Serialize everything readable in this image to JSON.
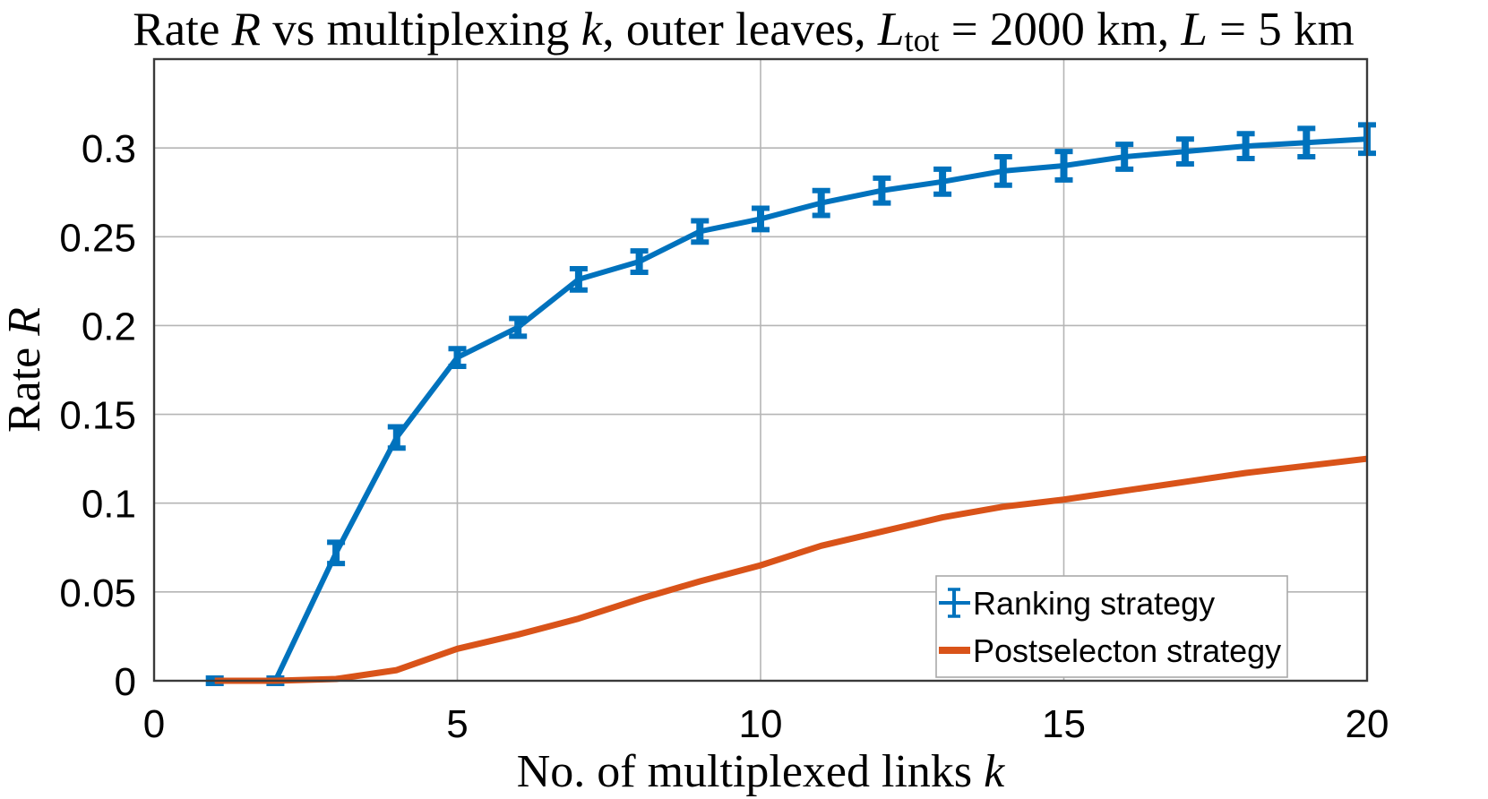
{
  "page": {
    "background": "#ffffff"
  },
  "chart_data": {
    "type": "line",
    "title_plain": "Rate R vs multiplexing k, outer leaves, L_tot = 2000 km, L = 5 km",
    "title_parts": [
      {
        "t": "Rate ",
        "s": "r"
      },
      {
        "t": "R",
        "s": "i"
      },
      {
        "t": " vs multiplexing ",
        "s": "r"
      },
      {
        "t": "k",
        "s": "i"
      },
      {
        "t": ", outer leaves, ",
        "s": "r"
      },
      {
        "t": "L",
        "s": "i"
      },
      {
        "t": "tot",
        "s": "sub"
      },
      {
        "t": " = 2000 km, ",
        "s": "r"
      },
      {
        "t": "L",
        "s": "i"
      },
      {
        "t": " = 5 km",
        "s": "r"
      }
    ],
    "xlabel_plain": "No. of multiplexed links k",
    "xlabel_parts": [
      {
        "t": "No. of multiplexed links ",
        "s": "r"
      },
      {
        "t": "k",
        "s": "i"
      }
    ],
    "ylabel_plain": "Rate R",
    "ylabel_parts": [
      {
        "t": "Rate ",
        "s": "r"
      },
      {
        "t": "R",
        "s": "i"
      }
    ],
    "x": [
      1,
      2,
      3,
      4,
      5,
      6,
      7,
      8,
      9,
      10,
      11,
      12,
      13,
      14,
      15,
      16,
      17,
      18,
      19,
      20
    ],
    "series": [
      {
        "name": "Ranking strategy",
        "color": "#0072BD",
        "style": "errorbar-line",
        "values": [
          0,
          0,
          0.072,
          0.137,
          0.182,
          0.199,
          0.226,
          0.236,
          0.253,
          0.26,
          0.269,
          0.276,
          0.281,
          0.287,
          0.29,
          0.295,
          0.298,
          0.301,
          0.303,
          0.305
        ],
        "errors": [
          0.0015,
          0.0015,
          0.006,
          0.006,
          0.005,
          0.005,
          0.006,
          0.006,
          0.006,
          0.006,
          0.007,
          0.007,
          0.007,
          0.008,
          0.008,
          0.007,
          0.007,
          0.007,
          0.008,
          0.008
        ]
      },
      {
        "name": "Postselecton strategy",
        "color": "#D95319",
        "style": "line",
        "values": [
          0,
          0,
          0.001,
          0.006,
          0.018,
          0.026,
          0.035,
          0.046,
          0.056,
          0.065,
          0.076,
          0.084,
          0.092,
          0.098,
          0.102,
          0.107,
          0.112,
          0.117,
          0.121,
          0.125
        ]
      }
    ],
    "xlim": [
      0,
      20
    ],
    "ylim": [
      0,
      0.35
    ],
    "xticks": [
      0,
      5,
      10,
      15,
      20
    ],
    "xtick_labels": [
      "0",
      "5",
      "10",
      "15",
      "20"
    ],
    "yticks": [
      0,
      0.05,
      0.1,
      0.15,
      0.2,
      0.25,
      0.3
    ],
    "ytick_labels": [
      "0",
      "0.05",
      "0.1",
      "0.15",
      "0.2",
      "0.25",
      "0.3"
    ],
    "grid": true,
    "legend": {
      "position": "southeast",
      "entries": [
        "Ranking strategy",
        "Postselecton strategy"
      ]
    },
    "colors": {
      "grid": "#b5b5b5",
      "frame": "#3a3a3a",
      "text": "#000000",
      "legend_border": "#a9a9a9",
      "legend_bg": "#ffffff"
    }
  }
}
